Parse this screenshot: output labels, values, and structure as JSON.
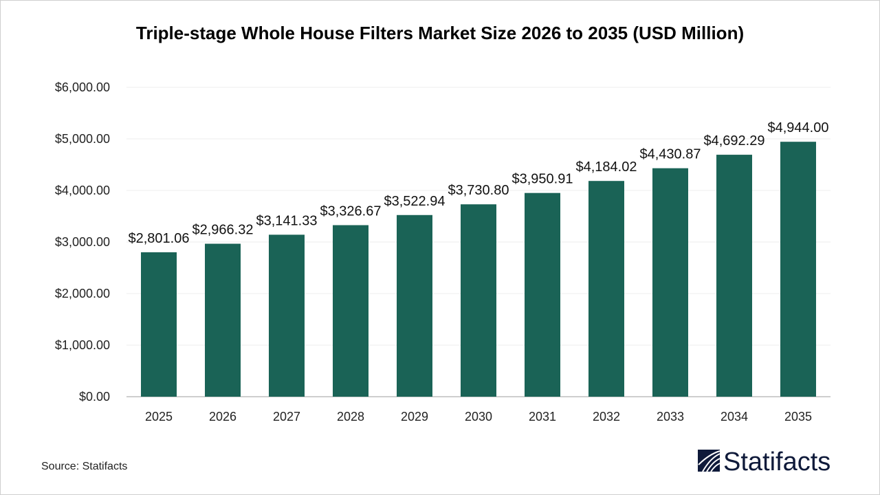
{
  "chart_data": {
    "type": "bar",
    "title": "Triple-stage Whole House Filters Market Size 2026 to 2035 (USD Million)",
    "categories": [
      "2025",
      "2026",
      "2027",
      "2028",
      "2029",
      "2030",
      "2031",
      "2032",
      "2033",
      "2034",
      "2035"
    ],
    "values": [
      2801.06,
      2966.32,
      3141.33,
      3326.67,
      3522.94,
      3730.8,
      3950.91,
      4184.02,
      4430.87,
      4692.29,
      4944.0
    ],
    "data_labels": [
      "$2,801.06",
      "$2,966.32",
      "$3,141.33",
      "$3,326.67",
      "$3,522.94",
      "$3,730.80",
      "$3,950.91",
      "$4,184.02",
      "$4,430.87",
      "$4,692.29",
      "$4,944.00"
    ],
    "yticks": [
      0,
      1000,
      2000,
      3000,
      4000,
      5000,
      6000
    ],
    "ytick_labels": [
      "$0.00",
      "$1,000.00",
      "$2,000.00",
      "$3,000.00",
      "$4,000.00",
      "$5,000.00",
      "$6,000.00"
    ],
    "ylim": [
      0,
      6000
    ],
    "xlabel": "",
    "ylabel": "",
    "grid": true,
    "legend": "none",
    "bar_color": "#1a6356"
  },
  "source": "Source: Statifacts",
  "logo_text": "Statifacts"
}
